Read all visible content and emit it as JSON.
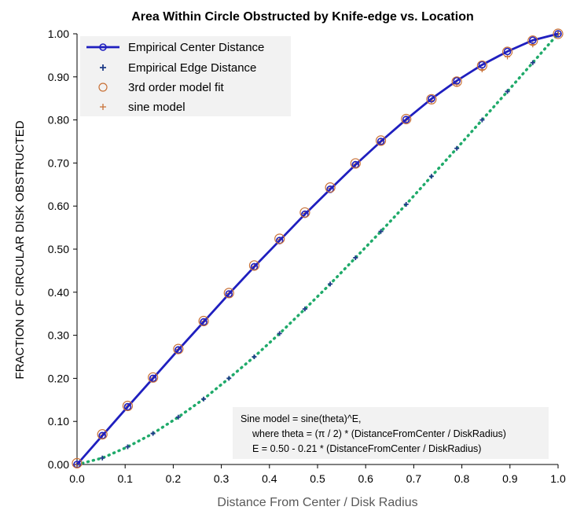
{
  "chart_data": {
    "type": "line",
    "title": "Area Within Circle Obstructed by Knife-edge vs. Location",
    "xlabel": "Distance From Center / Disk Radius",
    "ylabel": "FRACTION OF CIRCULAR DISK OBSTRUCTED",
    "xlim": [
      0,
      1
    ],
    "ylim": [
      0,
      1
    ],
    "x_ticks": [
      "0.0",
      "0.1",
      "0.2",
      "0.3",
      "0.4",
      "0.5",
      "0.6",
      "0.7",
      "0.8",
      "0.9",
      "1.0"
    ],
    "y_ticks": [
      "0.00",
      "0.10",
      "0.20",
      "0.30",
      "0.40",
      "0.50",
      "0.60",
      "0.70",
      "0.80",
      "0.90",
      "1.00"
    ],
    "grid": false,
    "legend_position": "top-left",
    "series": [
      {
        "name": "Empirical Center Distance",
        "style": "line-with-circle-markers",
        "color": "#1f1fbf",
        "x": [
          0,
          0.0526,
          0.1053,
          0.1579,
          0.2105,
          0.2632,
          0.3158,
          0.3684,
          0.4211,
          0.4737,
          0.5263,
          0.5789,
          0.6316,
          0.6842,
          0.7368,
          0.7895,
          0.8421,
          0.8947,
          0.9474,
          1.0
        ],
        "y": [
          0.0,
          0.067,
          0.134,
          0.2,
          0.266,
          0.331,
          0.396,
          0.459,
          0.52,
          0.581,
          0.639,
          0.696,
          0.75,
          0.801,
          0.849,
          0.891,
          0.928,
          0.959,
          0.985,
          1.0
        ]
      },
      {
        "name": "Empirical Edge Distance",
        "style": "dotted-line-with-plus-markers",
        "color": "#1f3c88",
        "line_color": "#1faa6a",
        "x": [
          0,
          0.0526,
          0.1053,
          0.1579,
          0.2105,
          0.2632,
          0.3158,
          0.3684,
          0.4211,
          0.4737,
          0.5263,
          0.5789,
          0.6316,
          0.6842,
          0.7368,
          0.7895,
          0.8421,
          0.8947,
          0.9474,
          1.0
        ],
        "y": [
          0.0,
          0.015,
          0.041,
          0.072,
          0.11,
          0.152,
          0.2,
          0.25,
          0.304,
          0.361,
          0.419,
          0.48,
          0.541,
          0.604,
          0.669,
          0.734,
          0.8,
          0.866,
          0.933,
          1.0
        ]
      },
      {
        "name": "3rd order model fit",
        "style": "open-circle-markers",
        "color": "#c87137",
        "x": [
          0,
          0.0526,
          0.1053,
          0.1579,
          0.2105,
          0.2632,
          0.3158,
          0.3684,
          0.4211,
          0.4737,
          0.5263,
          0.5789,
          0.6316,
          0.6842,
          0.7368,
          0.7895,
          0.8421,
          0.8947,
          0.9474,
          1.0
        ],
        "y": [
          0.003,
          0.07,
          0.136,
          0.202,
          0.268,
          0.333,
          0.398,
          0.462,
          0.524,
          0.585,
          0.643,
          0.699,
          0.752,
          0.802,
          0.848,
          0.889,
          0.926,
          0.958,
          0.984,
          1.0
        ]
      },
      {
        "name": "sine model",
        "style": "plus-markers",
        "color": "#c87137",
        "x": [
          0,
          0.0526,
          0.1053,
          0.1579,
          0.2105,
          0.2632,
          0.3158,
          0.3684,
          0.4211,
          0.4737,
          0.5263,
          0.5789,
          0.6316,
          0.6842,
          0.7368,
          0.7895,
          0.8421,
          0.8947,
          0.9474,
          1.0
        ],
        "y": [
          0.0,
          0.068,
          0.136,
          0.201,
          0.267,
          0.332,
          0.397,
          0.46,
          0.522,
          0.583,
          0.641,
          0.697,
          0.75,
          0.8,
          0.845,
          0.883,
          0.917,
          0.947,
          0.975,
          1.0
        ]
      }
    ],
    "annotation": [
      "Sine model = sine(theta)^E,",
      "where  theta = (π / 2) * (DistanceFromCenter / DiskRadius)",
      "E = 0.50 - 0.21 * (DistanceFromCenter / DiskRadius)"
    ]
  }
}
